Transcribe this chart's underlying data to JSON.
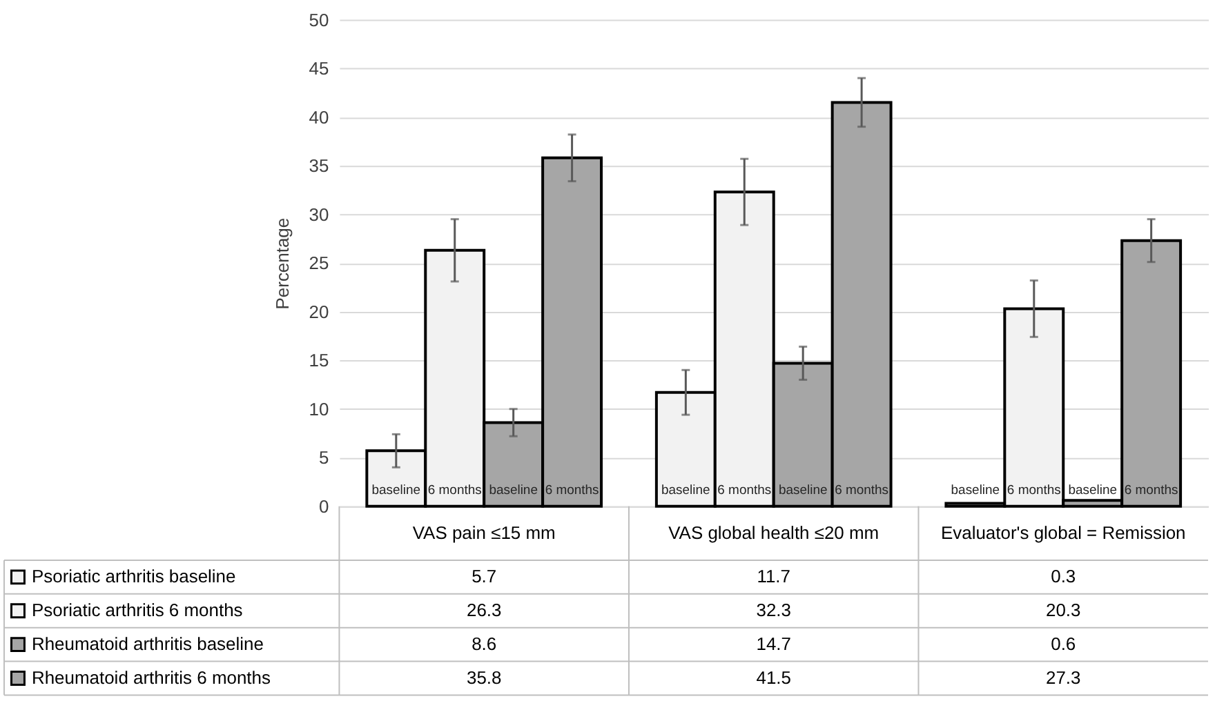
{
  "chart_data": {
    "type": "bar",
    "ylabel": "Percentage",
    "categories": [
      "VAS pain ≤15 mm",
      "VAS global health ≤20 mm",
      "Evaluator's global = Remission"
    ],
    "ylim": [
      0,
      50
    ],
    "yticks": [
      0,
      5,
      10,
      15,
      20,
      25,
      30,
      35,
      40,
      45,
      50
    ],
    "grid": "y",
    "legend": "bottom",
    "data_labels": true,
    "series": [
      {
        "name": "Psoriatic arthritis baseline",
        "color": "#f2f2f2",
        "values": [
          5.7,
          11.7,
          0.3
        ],
        "errors": [
          1.7,
          2.3,
          null
        ]
      },
      {
        "name": "Psoriatic arthritis 6 months",
        "color": "#f2f2f2",
        "values": [
          26.3,
          32.3,
          20.3
        ],
        "errors": [
          3.2,
          3.4,
          2.9
        ]
      },
      {
        "name": "Rheumatoid arthritis baseline",
        "color": "#a6a6a6",
        "values": [
          8.6,
          14.7,
          0.6
        ],
        "errors": [
          1.4,
          1.7,
          null
        ]
      },
      {
        "name": "Rheumatoid arthritis 6 months",
        "color": "#a6a6a6",
        "values": [
          35.8,
          41.5,
          27.3
        ],
        "errors": [
          2.4,
          2.5,
          2.2
        ]
      }
    ],
    "annotations": [
      "baseline",
      "6 months",
      "baseline",
      "6 months",
      "baseline",
      "6 months",
      "baseline",
      "6 months",
      "baseline",
      "6 months",
      "baseline",
      "6 months"
    ]
  }
}
